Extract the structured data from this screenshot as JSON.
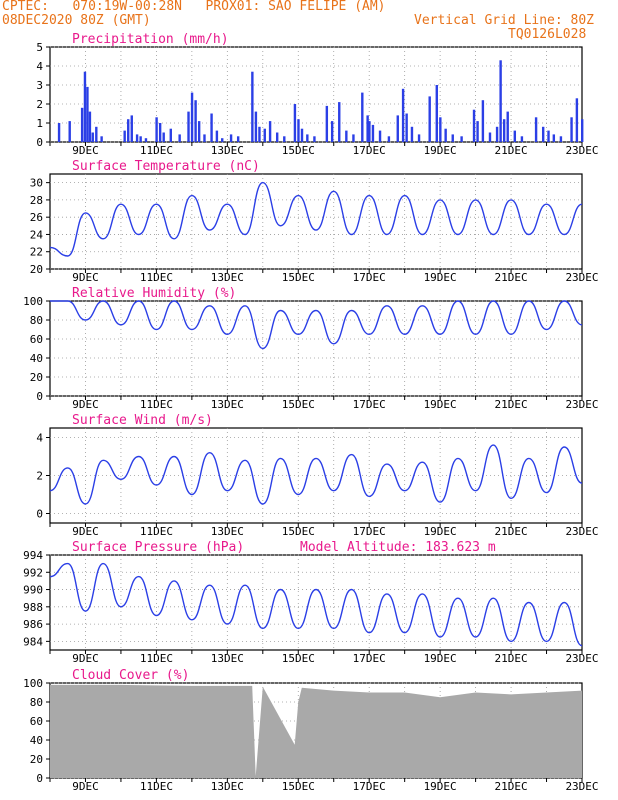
{
  "header": {
    "line1": "CPTEC:   070:19W-00:28N   PROX01: SAO FELIPE (AM)",
    "line2_left": "08DEC2020 80Z (GMT)",
    "line2_right": "Vertical Grid Line: 80Z",
    "line3_right": "TQ0126L028"
  },
  "colors": {
    "header": "#e8731a",
    "title": "#e8198c",
    "series": "#2b3fe6",
    "cloud": "#a9a9a9"
  },
  "x_ticks": [
    "9DEC",
    "11DEC",
    "13DEC",
    "15DEC",
    "17DEC",
    "19DEC",
    "21DEC",
    "23DEC"
  ],
  "panels": [
    {
      "key": "precip",
      "title": "Precipitation  (mm/h)",
      "type": "bar",
      "yticks": [
        "0",
        "1",
        "2",
        "3",
        "4",
        "5"
      ],
      "ylim": [
        0,
        5
      ],
      "grid": true
    },
    {
      "key": "temp",
      "title": "Surface Temperature (nC)",
      "type": "line",
      "yticks": [
        "20",
        "22",
        "24",
        "26",
        "28",
        "30"
      ],
      "ylim": [
        20,
        31
      ],
      "grid": true
    },
    {
      "key": "rh",
      "title": "Relative Humidity (%)",
      "type": "line",
      "yticks": [
        "0",
        "20",
        "40",
        "60",
        "80",
        "100"
      ],
      "ylim": [
        0,
        100
      ],
      "grid": true
    },
    {
      "key": "wind",
      "title": "Surface Wind (m/s)",
      "type": "line",
      "yticks": [
        "0",
        "2",
        "4"
      ],
      "ylim": [
        -0.5,
        4.5
      ],
      "grid": true
    },
    {
      "key": "pres",
      "title": "Surface Pressure (hPa)",
      "subtitle": "Model Altitude: 183.623 m",
      "type": "line",
      "yticks": [
        "984",
        "986",
        "988",
        "990",
        "992",
        "994"
      ],
      "ylim": [
        983,
        994
      ],
      "grid": true
    },
    {
      "key": "cloud",
      "title": "Cloud Cover (%)",
      "type": "area",
      "yticks": [
        "0",
        "20",
        "40",
        "60",
        "80",
        "100"
      ],
      "ylim": [
        0,
        100
      ],
      "grid": true
    }
  ],
  "chart_data": [
    {
      "type": "bar",
      "title": "Precipitation  (mm/h)",
      "x_range_days": [
        8,
        23
      ],
      "x": [
        8.25,
        8.55,
        8.9,
        8.98,
        9.05,
        9.12,
        9.2,
        9.3,
        9.45,
        10.1,
        10.2,
        10.3,
        10.45,
        10.55,
        10.7,
        11.0,
        11.1,
        11.2,
        11.4,
        11.65,
        11.9,
        12.0,
        12.1,
        12.2,
        12.35,
        12.55,
        12.7,
        12.85,
        13.1,
        13.3,
        13.7,
        13.8,
        13.9,
        14.05,
        14.2,
        14.4,
        14.6,
        14.9,
        15.0,
        15.1,
        15.25,
        15.45,
        15.8,
        15.95,
        16.15,
        16.35,
        16.55,
        16.8,
        16.95,
        17.0,
        17.1,
        17.3,
        17.55,
        17.8,
        17.95,
        18.05,
        18.2,
        18.4,
        18.7,
        18.9,
        19.0,
        19.15,
        19.35,
        19.6,
        19.95,
        20.05,
        20.2,
        20.4,
        20.6,
        20.7,
        20.8,
        20.9,
        21.1,
        21.3,
        21.7,
        21.9,
        22.05,
        22.2,
        22.4,
        22.7,
        22.85,
        23.0
      ],
      "values": [
        1.0,
        1.1,
        1.8,
        3.7,
        2.9,
        1.6,
        0.5,
        0.8,
        0.3,
        0.6,
        1.2,
        1.4,
        0.4,
        0.3,
        0.2,
        1.3,
        1.0,
        0.5,
        0.7,
        0.4,
        1.6,
        2.6,
        2.2,
        1.1,
        0.4,
        1.5,
        0.6,
        0.2,
        0.4,
        0.3,
        3.7,
        1.6,
        0.8,
        0.7,
        1.1,
        0.5,
        0.3,
        2.0,
        1.2,
        0.7,
        0.4,
        0.3,
        1.9,
        1.1,
        2.1,
        0.6,
        0.4,
        2.6,
        1.4,
        1.1,
        0.9,
        0.6,
        0.3,
        1.4,
        2.8,
        1.5,
        0.8,
        0.4,
        2.4,
        3.0,
        1.3,
        0.7,
        0.4,
        0.3,
        1.7,
        1.1,
        2.2,
        0.5,
        0.8,
        4.3,
        1.2,
        1.6,
        0.6,
        0.3,
        1.3,
        0.8,
        0.6,
        0.4,
        0.3,
        1.3,
        2.3,
        1.2
      ]
    },
    {
      "type": "line",
      "title": "Surface Temperature (nC)",
      "x": [
        8,
        8.5,
        9,
        9.5,
        10,
        10.5,
        11,
        11.5,
        12,
        12.5,
        13,
        13.5,
        14,
        14.5,
        15,
        15.5,
        16,
        16.5,
        17,
        17.5,
        18,
        18.5,
        19,
        19.5,
        20,
        20.5,
        21,
        21.5,
        22,
        22.5,
        23
      ],
      "values": [
        22.5,
        21.5,
        26.5,
        23.5,
        27.5,
        24,
        27.5,
        23.5,
        28.5,
        24.5,
        27.5,
        24,
        30,
        25,
        28.5,
        24.5,
        29,
        24,
        28.5,
        24,
        28.5,
        24,
        28,
        24,
        28,
        24,
        28,
        24,
        27.5,
        24,
        27.5
      ]
    },
    {
      "type": "line",
      "title": "Relative Humidity (%)",
      "x": [
        8,
        8.5,
        9,
        9.5,
        10,
        10.5,
        11,
        11.5,
        12,
        12.5,
        13,
        13.5,
        14,
        14.5,
        15,
        15.5,
        16,
        16.5,
        17,
        17.5,
        18,
        18.5,
        19,
        19.5,
        20,
        20.5,
        21,
        21.5,
        22,
        22.5,
        23
      ],
      "values": [
        100,
        100,
        80,
        100,
        75,
        100,
        70,
        100,
        70,
        95,
        65,
        95,
        50,
        90,
        65,
        90,
        55,
        90,
        65,
        95,
        65,
        95,
        65,
        100,
        65,
        100,
        65,
        100,
        70,
        100,
        75
      ]
    },
    {
      "type": "line",
      "title": "Surface Wind (m/s)",
      "x": [
        8,
        8.5,
        9,
        9.5,
        10,
        10.5,
        11,
        11.5,
        12,
        12.5,
        13,
        13.5,
        14,
        14.5,
        15,
        15.5,
        16,
        16.5,
        17,
        17.5,
        18,
        18.5,
        19,
        19.5,
        20,
        20.5,
        21,
        21.5,
        22,
        22.5,
        23
      ],
      "values": [
        1.2,
        2.4,
        0.5,
        2.8,
        1.8,
        3.0,
        1.5,
        3.0,
        1.0,
        3.2,
        1.2,
        2.8,
        0.5,
        2.9,
        1.0,
        2.9,
        1.2,
        3.1,
        0.9,
        2.6,
        1.2,
        2.7,
        0.6,
        2.9,
        1.2,
        3.6,
        0.8,
        2.9,
        1.1,
        3.5,
        1.6
      ]
    },
    {
      "type": "line",
      "title": "Surface Pressure (hPa)",
      "x": [
        8,
        8.5,
        9,
        9.5,
        10,
        10.5,
        11,
        11.5,
        12,
        12.5,
        13,
        13.5,
        14,
        14.5,
        15,
        15.5,
        16,
        16.5,
        17,
        17.5,
        18,
        18.5,
        19,
        19.5,
        20,
        20.5,
        21,
        21.5,
        22,
        22.5,
        23
      ],
      "values": [
        991.5,
        993,
        987.5,
        993,
        988,
        991.5,
        987,
        991,
        986.5,
        990.5,
        986,
        990.5,
        985.5,
        990,
        985.5,
        990,
        985.5,
        990,
        985,
        989.5,
        985,
        989.5,
        984.5,
        989,
        984.5,
        989,
        984,
        988.5,
        984,
        988.5,
        983.5
      ]
    },
    {
      "type": "area",
      "title": "Cloud Cover (%)",
      "x": [
        8,
        10,
        12,
        13.7,
        13.8,
        14,
        14.9,
        15,
        15.1,
        16,
        17,
        18,
        19,
        20,
        21,
        22,
        23
      ],
      "values": [
        98,
        98,
        97,
        97,
        2,
        96,
        35,
        80,
        95,
        92,
        90,
        90,
        85,
        90,
        88,
        90,
        92
      ]
    }
  ]
}
